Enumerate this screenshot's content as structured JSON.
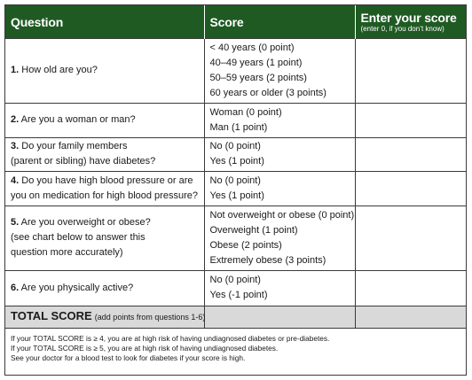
{
  "header": {
    "question": "Question",
    "score": "Score",
    "enter_score": "Enter your score",
    "enter_note": "(enter 0, if you don’t know)"
  },
  "rows": [
    {
      "num": "1.",
      "question": [
        "How old are you?"
      ],
      "options": [
        "< 40 years (0 point)",
        "40–49 years (1 point)",
        "50–59 years (2 points)",
        "60 years or older (3 points)"
      ]
    },
    {
      "num": "2.",
      "question": [
        "Are you a woman or man?"
      ],
      "options": [
        "Woman (0 point)",
        "Man (1 point)"
      ]
    },
    {
      "num": "3.",
      "question": [
        "Do your family members",
        "(parent or sibling) have diabetes?"
      ],
      "options": [
        "No (0 point)",
        "Yes (1 point)"
      ]
    },
    {
      "num": "4.",
      "question": [
        "Do you have high blood pressure or are",
        "you on medication for high blood pressure?"
      ],
      "options": [
        "No (0 point)",
        "Yes (1 point)"
      ]
    },
    {
      "num": "5.",
      "question": [
        "Are you overweight or obese?",
        "(see chart below to answer this",
        "question more accurately)"
      ],
      "options": [
        "Not overweight or obese (0 point)",
        "Overweight (1 point)",
        "Obese (2 points)",
        "Extremely obese (3 points)"
      ]
    },
    {
      "num": "6.",
      "question": [
        "Are you physically active?"
      ],
      "options": [
        "No (0 point)",
        "Yes (-1 point)"
      ]
    }
  ],
  "total": {
    "label": "TOTAL SCORE",
    "note": "(add points from questions 1-6)"
  },
  "footer": [
    "If your TOTAL SCORE is ≥ 4, you are at high risk of having undiagnosed diabetes or pre-diabetes.",
    "If your TOTAL SCORE is ≥ 5, you are at high risk of having undiagnosed diabetes.",
    "See your doctor for a blood test to look for diabetes if your score is high."
  ]
}
